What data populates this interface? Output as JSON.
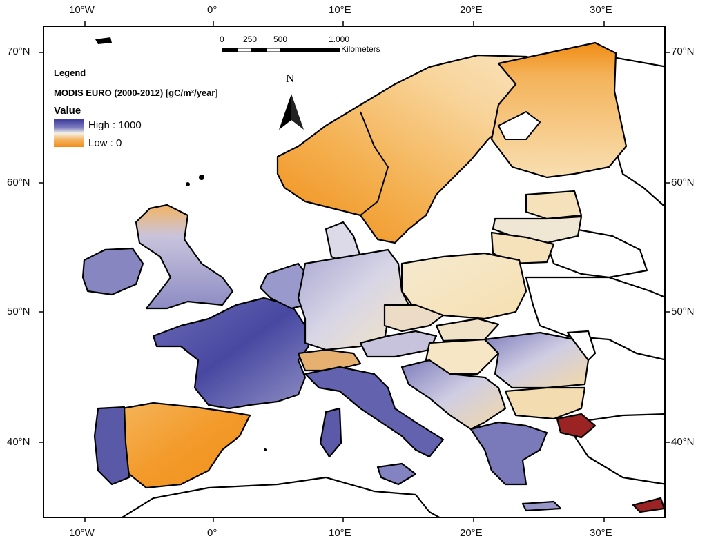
{
  "map": {
    "legend": {
      "heading": "Legend",
      "dataset": "MODIS EURO (2000-2012) [gC/m²/year]",
      "field": "Value",
      "high_label": "High : 1000",
      "low_label": "Low : 0",
      "high_color": "#3b3a9a",
      "mid_color": "#f3f1e6",
      "low_color": "#f08c14"
    },
    "scale_bar": {
      "ticks": [
        "0",
        "250",
        "500",
        "1.000"
      ],
      "unit": "Kilometers"
    },
    "north_arrow": "N",
    "graticule": {
      "longitude_labels": [
        "10°W",
        "0°",
        "10°E",
        "20°E",
        "30°E"
      ],
      "latitude_labels": [
        "70°N",
        "60°N",
        "50°N",
        "40°N"
      ]
    },
    "colors": {
      "border": "#000000",
      "sea": "#ffffff",
      "no_data_land": "#ffffff",
      "highlight_region": "#9b2323"
    }
  }
}
